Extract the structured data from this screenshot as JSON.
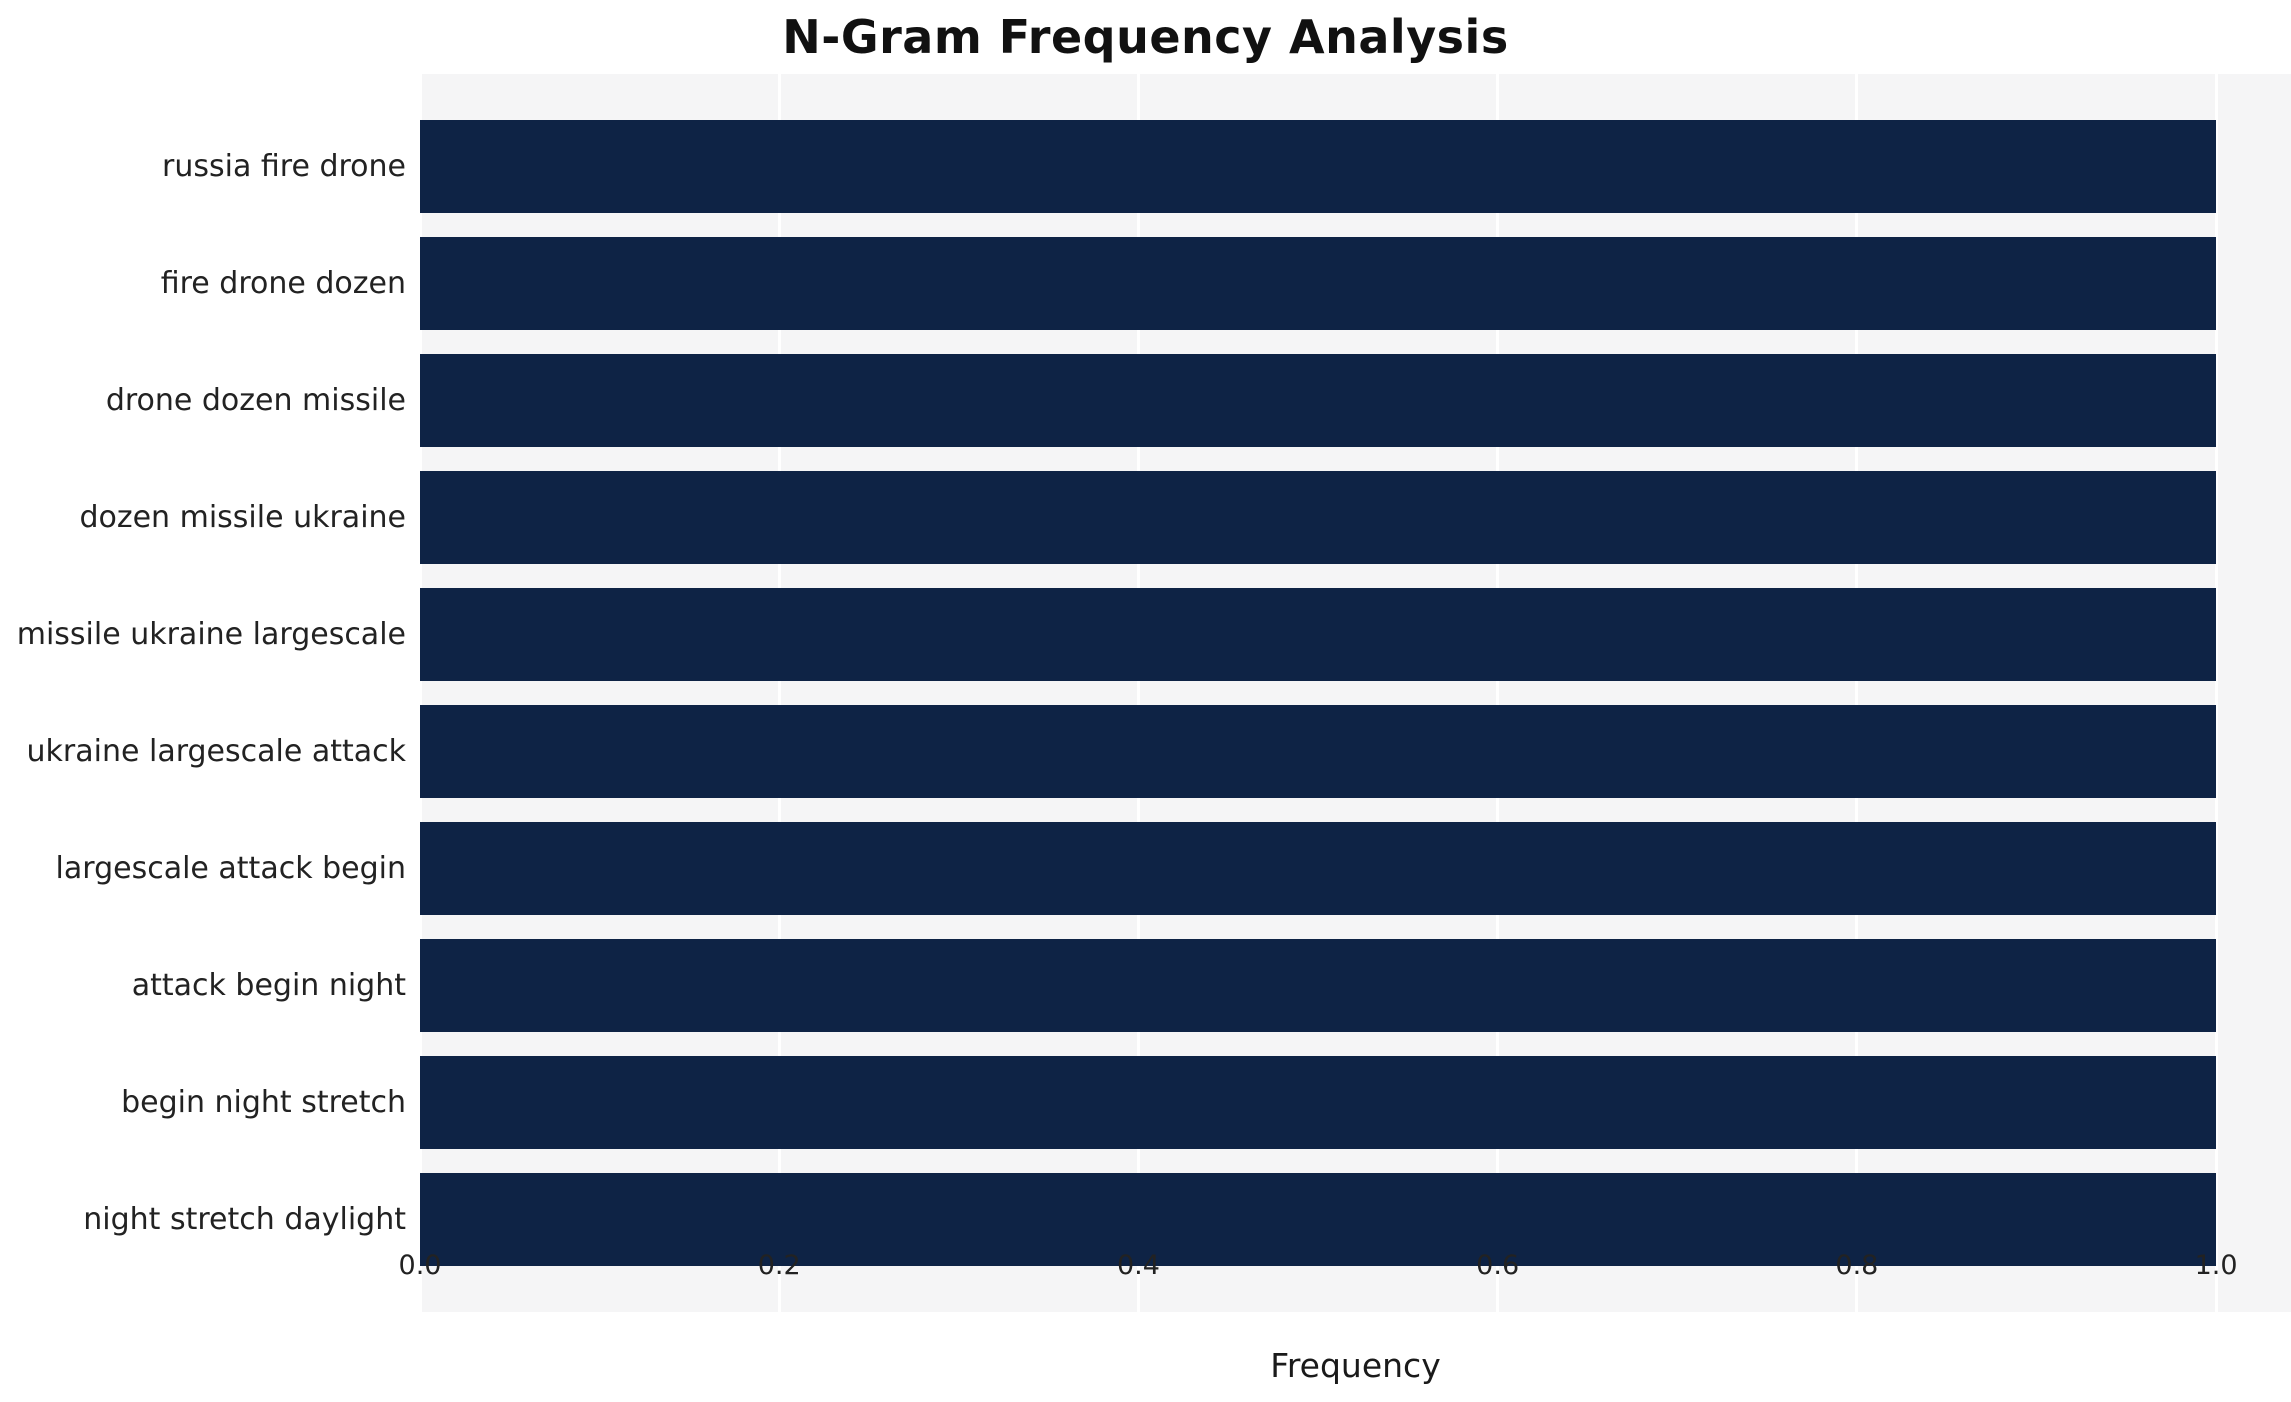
{
  "title": "N-Gram Frequency Analysis",
  "chart_data": {
    "type": "bar",
    "orientation": "horizontal",
    "title": "N-Gram Frequency Analysis",
    "categories": [
      "russia fire drone",
      "fire drone dozen",
      "drone dozen missile",
      "dozen missile ukraine",
      "missile ukraine largescale",
      "ukraine largescale attack",
      "largescale attack begin",
      "attack begin night",
      "begin night stretch",
      "night stretch daylight"
    ],
    "values": [
      1.0,
      1.0,
      1.0,
      1.0,
      1.0,
      1.0,
      1.0,
      1.0,
      1.0,
      1.0
    ],
    "xlabel": "Frequency",
    "ylabel": "",
    "xlim": [
      0,
      1.0417
    ],
    "xticks": [
      0.0,
      0.2,
      0.4,
      0.6,
      0.8,
      1.0
    ],
    "xtick_labels": [
      "0.0",
      "0.2",
      "0.4",
      "0.6",
      "0.8",
      "1.0"
    ],
    "grid": true,
    "legend": "none",
    "colors": {
      "bar": "#0e2345",
      "plot_bg": "#f5f5f6",
      "grid": "#ffffff",
      "text": "#222222"
    }
  }
}
